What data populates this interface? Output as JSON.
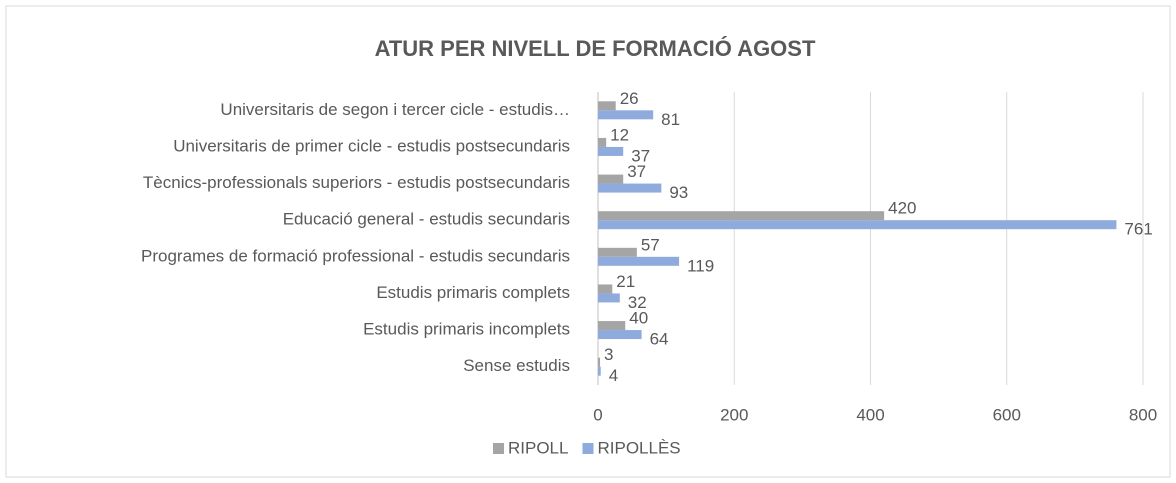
{
  "chart_data": {
    "type": "bar",
    "orientation": "horizontal",
    "title": "ATUR PER NIVELL DE FORMACIÓ AGOST",
    "categories": [
      "Universitaris de segon i tercer cicle - estudis…",
      "Universitaris de primer cicle - estudis postsecundaris",
      "Tècnics-professionals superiors - estudis postsecundaris",
      "Educació general - estudis secundaris",
      "Programes de formació professional - estudis secundaris",
      "Estudis primaris complets",
      "Estudis primaris incomplets",
      "Sense estudis"
    ],
    "series": [
      {
        "name": "RIPOLL",
        "color": "#a5a5a5",
        "values": [
          26,
          12,
          37,
          420,
          57,
          21,
          40,
          3
        ]
      },
      {
        "name": "RIPOLLÈS",
        "color": "#8faadc",
        "values": [
          81,
          37,
          93,
          761,
          119,
          32,
          64,
          4
        ]
      }
    ],
    "xlim": [
      0,
      800
    ],
    "xticks": [
      0,
      200,
      400,
      600,
      800
    ],
    "grid": true,
    "legend": "bottom"
  }
}
